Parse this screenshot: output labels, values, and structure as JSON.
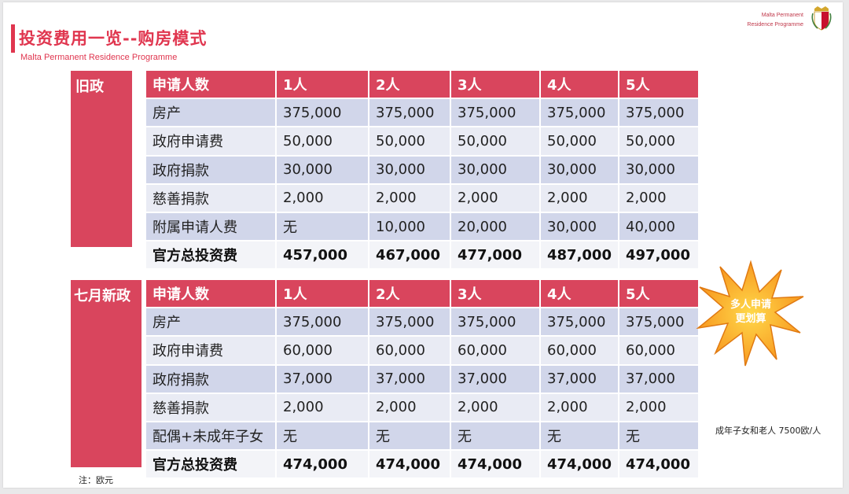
{
  "header": {
    "title": "投资费用一览--购房模式",
    "subtitle": "Malta Permanent Residence Programme",
    "logo_line1": "Malta Permanent",
    "logo_line2": "Residence Programme"
  },
  "old_policy": {
    "label": "旧政",
    "columns": [
      "申请人数",
      "1人",
      "2人",
      "3人",
      "4人",
      "5人"
    ],
    "rows": [
      [
        "房产",
        "375,000",
        "375,000",
        "375,000",
        "375,000",
        "375,000"
      ],
      [
        "政府申请费",
        "50,000",
        "50,000",
        "50,000",
        "50,000",
        "50,000"
      ],
      [
        "政府捐款",
        "30,000",
        "30,000",
        "30,000",
        "30,000",
        "30,000"
      ],
      [
        "慈善捐款",
        "2,000",
        "2,000",
        "2,000",
        "2,000",
        "2,000"
      ],
      [
        "附属申请人费",
        "无",
        "10,000",
        "20,000",
        "30,000",
        "40,000"
      ],
      [
        "官方总投资费",
        "457,000",
        "467,000",
        "477,000",
        "487,000",
        "497,000"
      ]
    ]
  },
  "new_policy": {
    "label": "七月新政",
    "columns": [
      "申请人数",
      "1人",
      "2人",
      "3人",
      "4人",
      "5人"
    ],
    "rows": [
      [
        "房产",
        "375,000",
        "375,000",
        "375,000",
        "375,000",
        "375,000"
      ],
      [
        "政府申请费",
        "60,000",
        "60,000",
        "60,000",
        "60,000",
        "60,000"
      ],
      [
        "政府捐款",
        "37,000",
        "37,000",
        "37,000",
        "37,000",
        "37,000"
      ],
      [
        "慈善捐款",
        "2,000",
        "2,000",
        "2,000",
        "2,000",
        "2,000"
      ],
      [
        "配偶+未成年子女",
        "无",
        "无",
        "无",
        "无",
        "无"
      ],
      [
        "官方总投资费",
        "474,000",
        "474,000",
        "474,000",
        "474,000",
        "474,000"
      ]
    ]
  },
  "burst": {
    "line1": "多人申请",
    "line2": "更划算"
  },
  "side_note": "成年子女和老人 7500欧/人",
  "footnote": "注：欧元",
  "colors": {
    "accent": "#d9455d",
    "row_dark": "#d1d6ea",
    "row_light": "#e9ebf4",
    "burst": "#f7941d"
  }
}
